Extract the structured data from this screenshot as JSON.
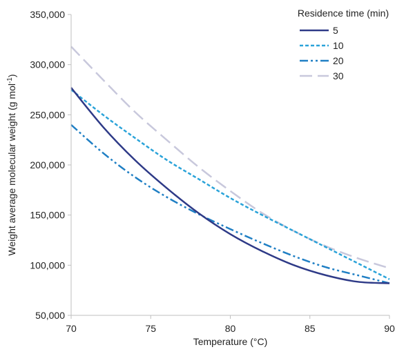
{
  "chart_data": {
    "type": "line",
    "xlabel": "Temperature (°C)",
    "ylabel": {
      "main": "Weight average molecular weight (g mol",
      "sup": "-1",
      "end": ")"
    },
    "xlim": [
      70,
      90
    ],
    "ylim": [
      50000,
      350000
    ],
    "x_ticks": [
      70,
      75,
      80,
      85,
      90
    ],
    "x_tick_labels": [
      "70",
      "75",
      "80",
      "85",
      "90"
    ],
    "y_ticks": [
      50000,
      100000,
      150000,
      200000,
      250000,
      300000,
      350000
    ],
    "y_tick_labels": [
      "50,000",
      "100,000",
      "150,000",
      "200,000",
      "250,000",
      "300,000",
      "350,000"
    ],
    "grid": false,
    "legend": {
      "title": "Residence time (min)",
      "placement": "top-right"
    },
    "series": [
      {
        "name": "5",
        "color": "#2e3a87",
        "dash": "solid",
        "x": [
          70,
          72,
          74,
          76,
          78,
          80,
          82,
          84,
          86,
          88,
          90
        ],
        "y": [
          277000,
          238000,
          205000,
          177000,
          152000,
          131000,
          114000,
          100000,
          90000,
          83500,
          82000
        ]
      },
      {
        "name": "10",
        "color": "#2aa3d9",
        "dash": "short-dash",
        "x": [
          70,
          72,
          74,
          76,
          78,
          80,
          82,
          84,
          86,
          88,
          90
        ],
        "y": [
          275000,
          250000,
          227000,
          205000,
          186000,
          167000,
          150000,
          134000,
          118000,
          102000,
          86000
        ]
      },
      {
        "name": "20",
        "color": "#1f7fc4",
        "dash": "dash-dot-dot",
        "x": [
          70,
          72,
          74,
          76,
          78,
          80,
          82,
          84,
          86,
          88,
          90
        ],
        "y": [
          240000,
          212000,
          188000,
          168000,
          151000,
          136000,
          122000,
          109000,
          98000,
          90000,
          82000
        ]
      },
      {
        "name": "30",
        "color": "#c8c8dc",
        "dash": "long-dash",
        "x": [
          70,
          72,
          74,
          76,
          78,
          80,
          82,
          84,
          86,
          88,
          90
        ],
        "y": [
          318000,
          285000,
          253000,
          225000,
          198000,
          174000,
          152000,
          134000,
          119000,
          107000,
          97000
        ]
      }
    ]
  }
}
